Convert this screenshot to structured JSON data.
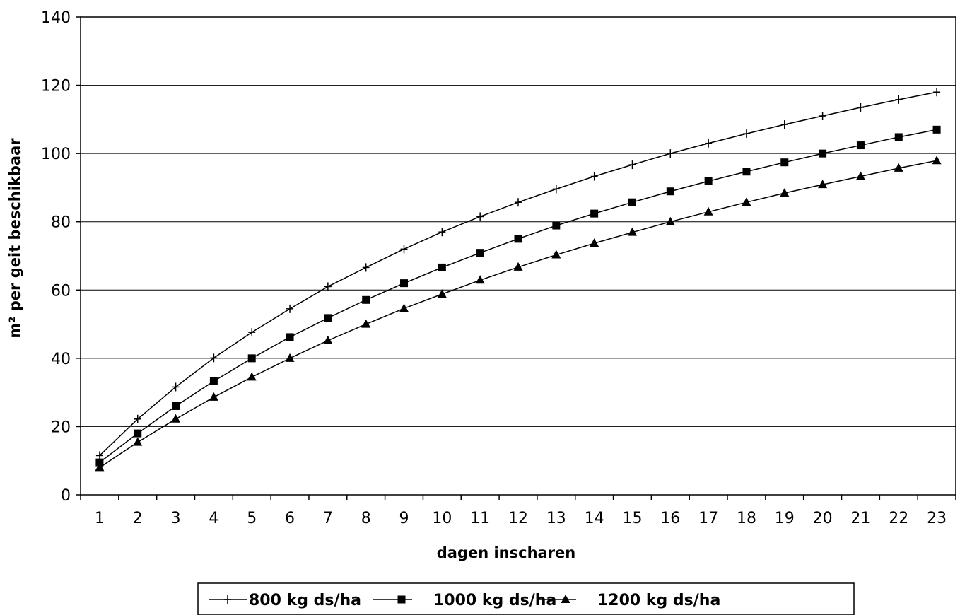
{
  "chart_data": {
    "type": "line",
    "xlabel": "dagen inscharen",
    "ylabel": "m² per geit beschikbaar",
    "ylim": [
      0,
      140
    ],
    "yticks": [
      0,
      20,
      40,
      60,
      80,
      100,
      120,
      140
    ],
    "grid": true,
    "legend_position": "bottom",
    "categories": [
      1,
      2,
      3,
      4,
      5,
      6,
      7,
      8,
      9,
      10,
      11,
      12,
      13,
      14,
      15,
      16,
      17,
      18,
      19,
      20,
      21,
      22,
      23
    ],
    "series": [
      {
        "name": "800 kg ds/ha",
        "marker": "plus",
        "values": [
          11.5,
          22.2,
          31.6,
          40.1,
          47.6,
          54.5,
          61.0,
          66.6,
          72.0,
          77.0,
          81.5,
          85.7,
          89.6,
          93.3,
          96.7,
          100.0,
          103.0,
          105.8,
          108.5,
          111.0,
          113.5,
          115.8,
          118.0
        ]
      },
      {
        "name": "1000 kg ds/ha",
        "marker": "square",
        "values": [
          9.5,
          18.0,
          26.0,
          33.3,
          40.0,
          46.2,
          51.8,
          57.1,
          62.0,
          66.6,
          70.9,
          75.0,
          78.9,
          82.4,
          85.7,
          88.9,
          91.9,
          94.7,
          97.4,
          100.0,
          102.4,
          104.8,
          107.0
        ]
      },
      {
        "name": "1200 kg ds/ha",
        "marker": "triangle",
        "values": [
          8.0,
          15.4,
          22.2,
          28.6,
          34.5,
          40.0,
          45.2,
          50.0,
          54.6,
          58.8,
          62.9,
          66.7,
          70.3,
          73.7,
          76.9,
          80.0,
          82.9,
          85.7,
          88.4,
          90.9,
          93.3,
          95.7,
          97.9
        ]
      }
    ]
  }
}
